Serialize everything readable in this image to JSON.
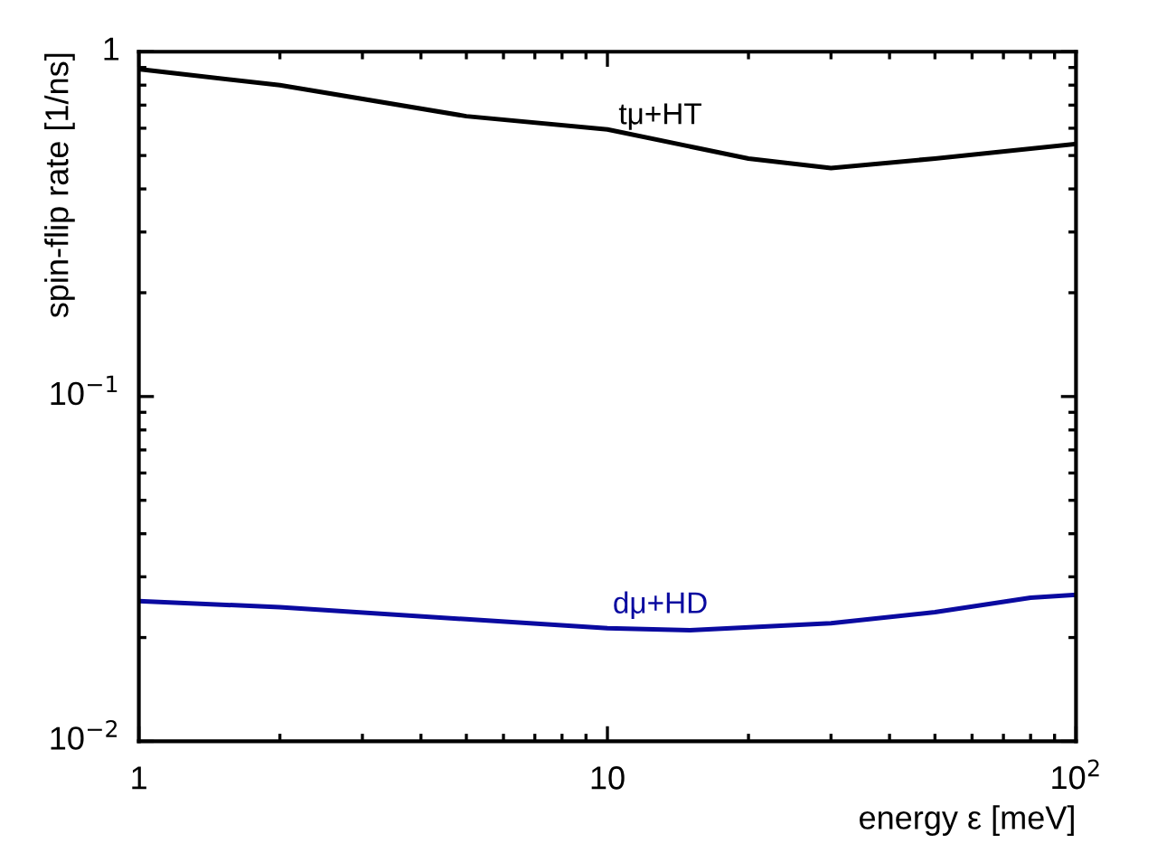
{
  "chart_data": {
    "type": "line",
    "xlabel": "energy ε [meV]",
    "ylabel": "spin-flip rate [1/ns]",
    "log": "xy",
    "xlim": [
      1,
      100
    ],
    "xticks": [
      1,
      10,
      {
        "value": 100,
        "label": "10$^{2}$"
      }
    ],
    "ylim": [
      0.01,
      1
    ],
    "yticks": [
      {
        "value": 0.01,
        "label": "10$^{−2}$"
      },
      {
        "value": 0.1,
        "label": "10$^{−1}$"
      },
      1
    ],
    "grid": false,
    "legend": false,
    "line_style": "solid",
    "series": [
      {
        "name": "tμ+HT",
        "color": "#000000",
        "x": [
          1,
          2,
          5,
          10,
          20,
          30,
          50,
          100
        ],
        "values": [
          0.89,
          0.8,
          0.65,
          0.595,
          0.49,
          0.46,
          0.49,
          0.54
        ]
      },
      {
        "name": "dμ+HD",
        "color": "#0a0aa0",
        "x": [
          1,
          2,
          5,
          10,
          15,
          30,
          50,
          80,
          100
        ],
        "values": [
          0.0255,
          0.0245,
          0.0226,
          0.0213,
          0.021,
          0.022,
          0.0237,
          0.0261,
          0.0266
        ]
      }
    ]
  }
}
